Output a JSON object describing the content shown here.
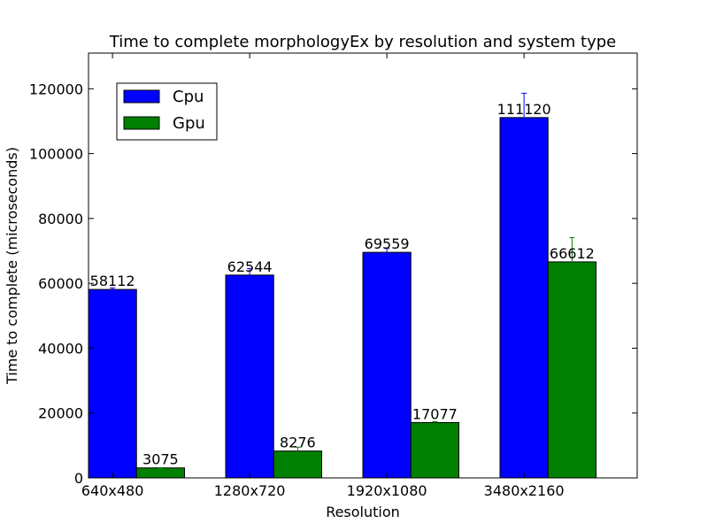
{
  "chart_data": {
    "type": "bar",
    "title": "Time to complete morphologyEx by resolution and system type",
    "xlabel": "Resolution",
    "ylabel": "Time to complete (microseconds)",
    "categories": [
      "640x480",
      "1280x720",
      "1920x1080",
      "3480x2160"
    ],
    "ylim": [
      0,
      131000
    ],
    "yticks": [
      0,
      20000,
      40000,
      60000,
      80000,
      100000,
      120000
    ],
    "series": [
      {
        "name": "Cpu",
        "color": "#0000ff",
        "values": [
          58112,
          62544,
          69559,
          111120
        ],
        "errors": [
          500,
          2000,
          1200,
          7500
        ]
      },
      {
        "name": "Gpu",
        "color": "#008000",
        "values": [
          3075,
          8276,
          17077,
          66612
        ],
        "errors": [
          100,
          1200,
          300,
          7500
        ]
      }
    ],
    "grid": false,
    "legend_position": "top-left"
  }
}
